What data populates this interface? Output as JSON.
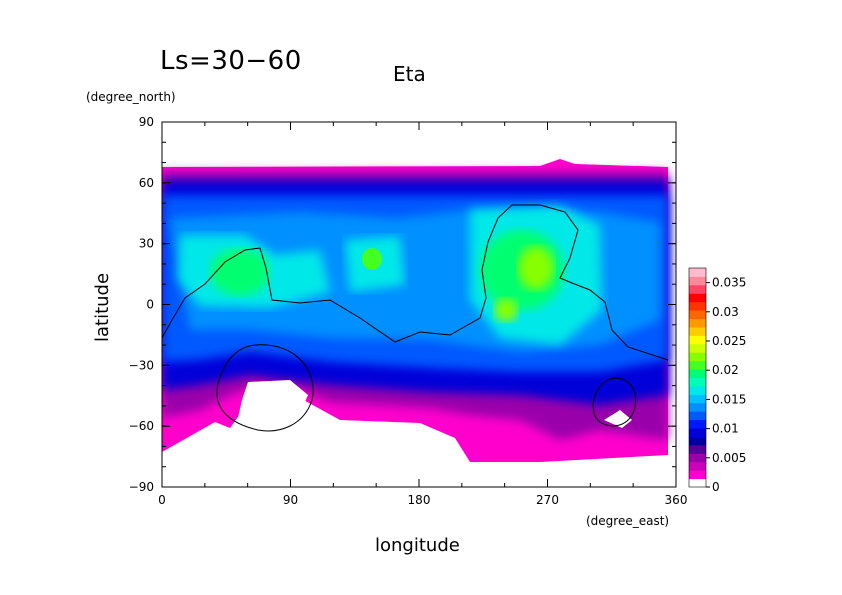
{
  "chart_data": {
    "type": "heatmap",
    "title": "Eta",
    "season_label": "Ls=30−60",
    "xlabel": "longitude",
    "ylabel": "latitude",
    "x_unit": "(degree_east)",
    "y_unit": "(degree_north)",
    "xlim": [
      0,
      360
    ],
    "ylim": [
      -90,
      90
    ],
    "x_ticks": [
      "0",
      "90",
      "180",
      "270",
      "360"
    ],
    "y_ticks": [
      "90",
      "60",
      "30",
      "0",
      "−30",
      "−60",
      "−90"
    ],
    "colorbar": {
      "range": [
        0,
        0.0375
      ],
      "tick_labels": [
        "0",
        "0.005",
        "0.01",
        "0.015",
        "0.02",
        "0.025",
        "0.03",
        "0.035"
      ],
      "tick_values": [
        0,
        0.005,
        0.01,
        0.015,
        0.02,
        0.025,
        0.03,
        0.035
      ],
      "colors": [
        "#ffffff",
        "#ff00cc",
        "#cc00bb",
        "#9900aa",
        "#550099",
        "#0000a0",
        "#0000d8",
        "#0018ff",
        "#0058ff",
        "#0090ff",
        "#00c0ff",
        "#00e8e8",
        "#00ffb0",
        "#00ff70",
        "#44ff22",
        "#88ff00",
        "#ccff00",
        "#ffff00",
        "#ffcc00",
        "#ff9900",
        "#ff6600",
        "#ff3300",
        "#ff0000",
        "#ff4466",
        "#ff8899",
        "#ffbbcc"
      ]
    },
    "grid": false
  }
}
